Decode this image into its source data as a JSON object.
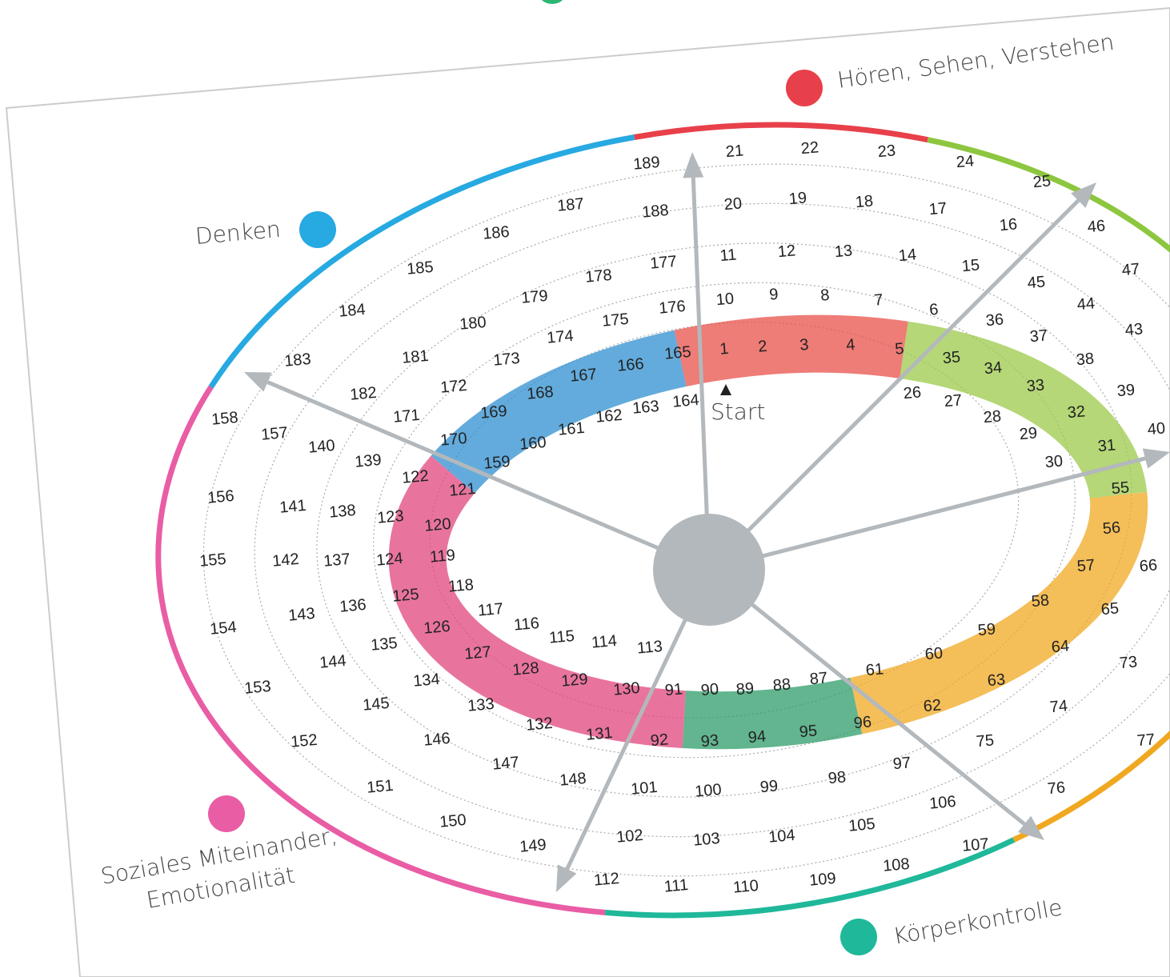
{
  "domains": [
    {
      "label": "Hören, Sehen, Verstehen"
    },
    {
      "label": "Denken"
    },
    {
      "label": "Soziales Miteinander,"
    },
    {
      "label": "Emotionalität"
    },
    {
      "label": "Körperkontrolle"
    }
  ],
  "start": "Start",
  "cells": [
    1,
    2,
    3,
    4,
    5,
    6,
    7,
    8,
    9,
    10,
    11,
    12,
    13,
    14,
    15,
    16,
    17,
    18,
    19,
    20,
    21,
    22,
    23,
    24,
    25,
    26,
    27,
    28,
    29,
    30,
    31,
    32,
    33,
    34,
    35,
    36,
    37,
    38,
    39,
    40,
    43,
    44,
    45,
    46,
    47,
    55,
    56,
    57,
    58,
    59,
    60,
    61,
    62,
    63,
    64,
    65,
    66,
    73,
    74,
    75,
    76,
    77,
    87,
    88,
    89,
    90,
    91,
    92,
    93,
    94,
    95,
    96,
    97,
    98,
    99,
    100,
    101,
    102,
    103,
    104,
    105,
    106,
    107,
    108,
    109,
    110,
    111,
    112,
    113,
    114,
    115,
    116,
    117,
    118,
    119,
    120,
    121,
    122,
    123,
    124,
    125,
    126,
    127,
    128,
    129,
    130,
    131,
    132,
    133,
    134,
    135,
    136,
    137,
    138,
    139,
    140,
    141,
    142,
    143,
    144,
    145,
    146,
    147,
    148,
    149,
    150,
    151,
    152,
    153,
    154,
    155,
    156,
    157,
    158,
    159,
    160,
    161,
    162,
    163,
    164,
    165,
    166,
    167,
    168,
    169,
    170,
    171,
    172,
    173,
    174,
    175,
    176,
    177,
    178,
    179,
    180,
    181,
    182,
    183,
    184,
    185,
    186,
    187,
    188,
    189
  ]
}
